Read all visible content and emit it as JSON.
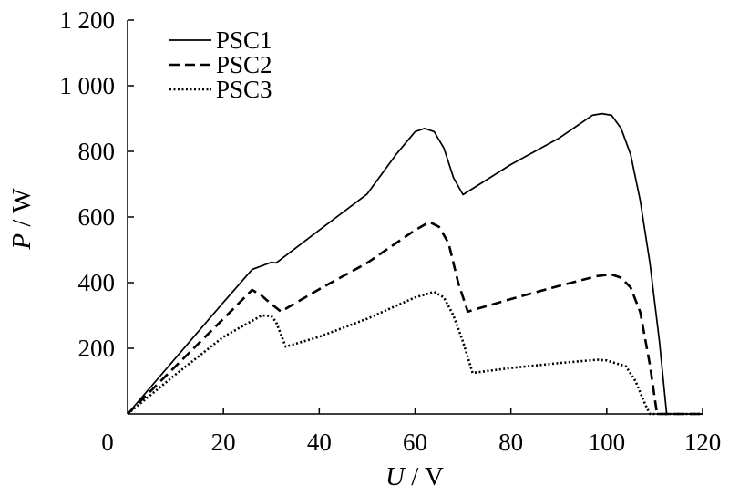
{
  "chart_data": {
    "type": "line",
    "xlabel": {
      "symbol": "U",
      "unit": "/ V"
    },
    "ylabel": {
      "symbol": "P",
      "unit": "/ W"
    },
    "xlim": [
      0,
      120
    ],
    "ylim": [
      0,
      1200
    ],
    "x_ticks": [
      0,
      20,
      40,
      60,
      80,
      100,
      120
    ],
    "y_ticks": [
      200,
      400,
      600,
      800,
      1000,
      1200
    ],
    "x_tick_labels": [
      "0",
      "20",
      "40",
      "60",
      "80",
      "100",
      "120"
    ],
    "y_tick_labels": [
      "200",
      "400",
      "600",
      "800",
      "1 000",
      "1 200"
    ],
    "grid": false,
    "legend_position": "top-left",
    "series": [
      {
        "name": "PSC1",
        "style": "solid",
        "points": [
          [
            0,
            0
          ],
          [
            10,
            170
          ],
          [
            20,
            340
          ],
          [
            26,
            440
          ],
          [
            30,
            462
          ],
          [
            31,
            460
          ],
          [
            40,
            560
          ],
          [
            50,
            670
          ],
          [
            56,
            790
          ],
          [
            60,
            860
          ],
          [
            62,
            870
          ],
          [
            64,
            860
          ],
          [
            66,
            810
          ],
          [
            68,
            720
          ],
          [
            70,
            668
          ],
          [
            80,
            760
          ],
          [
            90,
            840
          ],
          [
            97,
            910
          ],
          [
            99,
            915
          ],
          [
            101,
            910
          ],
          [
            103,
            870
          ],
          [
            105,
            790
          ],
          [
            107,
            650
          ],
          [
            109,
            460
          ],
          [
            111,
            220
          ],
          [
            112.5,
            0
          ],
          [
            120,
            0
          ]
        ]
      },
      {
        "name": "PSC2",
        "style": "dashed",
        "points": [
          [
            0,
            0
          ],
          [
            10,
            145
          ],
          [
            20,
            290
          ],
          [
            26,
            378
          ],
          [
            28,
            360
          ],
          [
            30,
            335
          ],
          [
            32,
            312
          ],
          [
            40,
            380
          ],
          [
            50,
            460
          ],
          [
            60,
            560
          ],
          [
            63,
            585
          ],
          [
            65,
            570
          ],
          [
            67,
            520
          ],
          [
            69,
            400
          ],
          [
            71,
            312
          ],
          [
            80,
            350
          ],
          [
            90,
            390
          ],
          [
            98,
            420
          ],
          [
            101,
            425
          ],
          [
            103,
            415
          ],
          [
            105,
            385
          ],
          [
            107,
            310
          ],
          [
            109,
            150
          ],
          [
            110.5,
            0
          ],
          [
            120,
            0
          ]
        ]
      },
      {
        "name": "PSC3",
        "style": "dotted",
        "points": [
          [
            0,
            0
          ],
          [
            10,
            120
          ],
          [
            20,
            235
          ],
          [
            28,
            300
          ],
          [
            30,
            298
          ],
          [
            31,
            280
          ],
          [
            33,
            205
          ],
          [
            40,
            235
          ],
          [
            50,
            290
          ],
          [
            60,
            355
          ],
          [
            64,
            372
          ],
          [
            66,
            355
          ],
          [
            68,
            300
          ],
          [
            70,
            220
          ],
          [
            72,
            125
          ],
          [
            80,
            140
          ],
          [
            90,
            155
          ],
          [
            98,
            165
          ],
          [
            100,
            163
          ],
          [
            104,
            145
          ],
          [
            106,
            100
          ],
          [
            108,
            30
          ],
          [
            109,
            0
          ],
          [
            120,
            0
          ]
        ]
      }
    ]
  }
}
